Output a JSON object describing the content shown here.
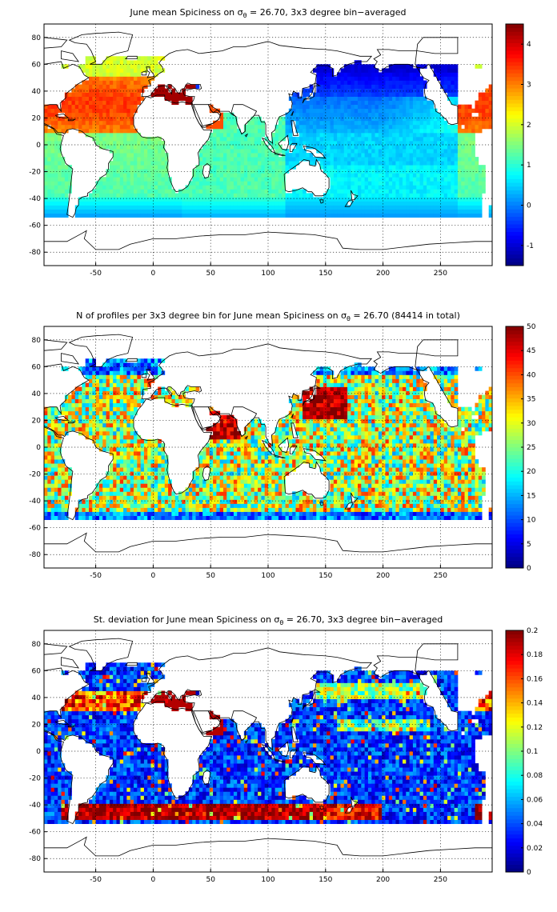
{
  "chart_data": [
    {
      "type": "heatmap",
      "title": "June mean Spiciness on σθ = 26.70, 3x3 degree bin−averaged",
      "title_parts": {
        "pre": "June mean Spiciness on σ",
        "sub": "θ",
        "post": " = 26.70, 3x3 degree bin−averaged"
      },
      "xlim": [
        -95,
        295
      ],
      "ylim": [
        -90,
        90
      ],
      "xticks": [
        -50,
        0,
        50,
        100,
        150,
        200,
        250
      ],
      "yticks": [
        80,
        60,
        40,
        20,
        0,
        -20,
        -40,
        -60,
        -80
      ],
      "grid": true,
      "colorbar": {
        "min": -1.5,
        "max": 4.5,
        "ticks": [
          4,
          3,
          2,
          1,
          0,
          -1
        ]
      },
      "field": "spice",
      "approx_values": {
        "north_atlantic_subtropics": 3.2,
        "mediterranean_outflow": 4.3,
        "red_sea": 3.3,
        "indian_ocean": 1.3,
        "south_atlantic": 1.1,
        "north_pacific_subpolar": -0.9,
        "north_pacific_subtropical": 0.1,
        "southern_ocean": 0.1
      }
    },
    {
      "type": "heatmap",
      "title": "N of profiles per 3x3 degree bin for June mean Spiciness on σθ = 26.70 (84414 in total)",
      "title_parts": {
        "pre": "N of profiles per 3x3 degree bin for June mean Spiciness on σ",
        "sub": "θ",
        "post": " = 26.70 (84414 in total)"
      },
      "xlim": [
        -95,
        295
      ],
      "ylim": [
        -90,
        90
      ],
      "xticks": [
        -50,
        0,
        50,
        100,
        150,
        200,
        250
      ],
      "yticks": [
        80,
        60,
        40,
        20,
        0,
        -20,
        -40,
        -60,
        -80
      ],
      "grid": true,
      "colorbar": {
        "min": 0,
        "max": 50,
        "ticks": [
          50,
          45,
          40,
          35,
          30,
          25,
          20,
          15,
          10,
          5,
          0
        ]
      },
      "field": "count",
      "total_profiles": 84414
    },
    {
      "type": "heatmap",
      "title": "St. deviation for June mean Spiciness on σθ = 26.70, 3x3 degree bin−averaged",
      "title_parts": {
        "pre": "St. deviation for June mean Spiciness on σ",
        "sub": "θ",
        "post": " = 26.70, 3x3 degree bin−averaged"
      },
      "xlim": [
        -95,
        295
      ],
      "ylim": [
        -90,
        90
      ],
      "xticks": [
        -50,
        0,
        50,
        100,
        150,
        200,
        250
      ],
      "yticks": [
        80,
        60,
        40,
        20,
        0,
        -20,
        -40,
        -60,
        -80
      ],
      "grid": true,
      "colorbar": {
        "min": 0,
        "max": 0.2,
        "ticks": [
          0.2,
          0.18,
          0.16,
          0.14,
          0.12,
          0.1,
          0.08,
          0.06,
          0.04,
          0.02,
          0
        ]
      },
      "field": "std"
    }
  ],
  "colormap": "jet"
}
